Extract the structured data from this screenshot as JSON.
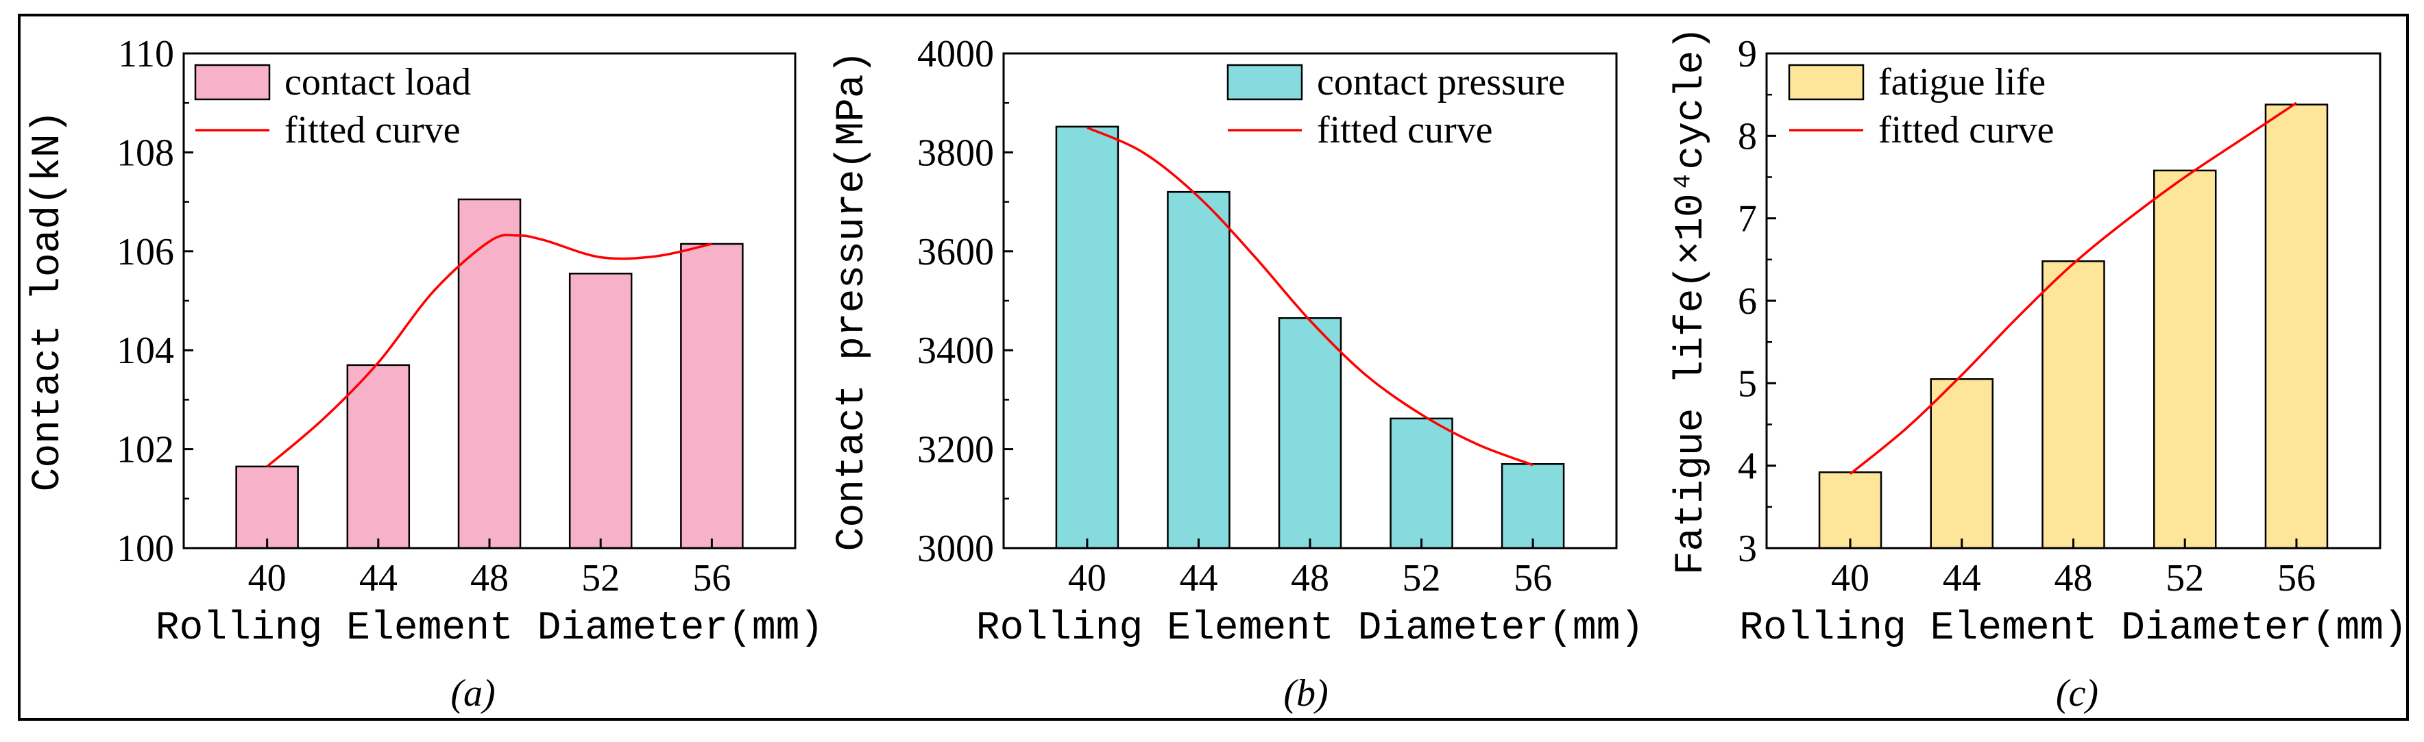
{
  "chart_data": [
    {
      "type": "bar",
      "caption": "(a)",
      "categories": [
        "40",
        "44",
        "48",
        "52",
        "56"
      ],
      "series": [
        {
          "name": "contact load",
          "kind": "bar",
          "values": [
            101.65,
            103.7,
            107.05,
            105.55,
            106.15
          ]
        },
        {
          "name": "fitted curve",
          "kind": "line",
          "x": [
            40,
            42,
            44,
            46,
            48,
            49,
            50,
            52,
            54,
            56
          ],
          "values": [
            101.65,
            102.6,
            103.75,
            105.2,
            106.2,
            106.32,
            106.22,
            105.88,
            105.9,
            106.15
          ]
        }
      ],
      "xlabel": "Rolling Element Diameter(mm)",
      "ylabel": "Contact load(kN)",
      "ylim": [
        100,
        110
      ],
      "yticks": [
        "100",
        "102",
        "104",
        "106",
        "108",
        "110"
      ],
      "legend_position": "top-left",
      "colors": {
        "bar": "#f7b2c9",
        "line": "#ff0000"
      }
    },
    {
      "type": "bar",
      "caption": "(b)",
      "categories": [
        "40",
        "44",
        "48",
        "52",
        "56"
      ],
      "series": [
        {
          "name": "contact pressure",
          "kind": "bar",
          "values": [
            3852,
            3720,
            3465,
            3262,
            3170
          ]
        },
        {
          "name": "fitted curve",
          "kind": "line",
          "x": [
            40,
            42,
            44,
            46,
            48,
            50,
            52,
            54,
            56
          ],
          "values": [
            3850,
            3800,
            3710,
            3590,
            3460,
            3350,
            3270,
            3210,
            3168
          ]
        }
      ],
      "xlabel": "Rolling Element Diameter(mm)",
      "ylabel": "Contact pressure(MPa)",
      "ylim": [
        3000,
        4000
      ],
      "yticks": [
        "3000",
        "3200",
        "3400",
        "3600",
        "3800",
        "4000"
      ],
      "legend_position": "top-right",
      "colors": {
        "bar": "#86dbdf",
        "line": "#ff0000"
      }
    },
    {
      "type": "bar",
      "caption": "(c)",
      "categories": [
        "40",
        "44",
        "48",
        "52",
        "56"
      ],
      "series": [
        {
          "name": "fatigue life",
          "kind": "bar",
          "values": [
            3.92,
            5.05,
            6.48,
            7.58,
            8.38
          ]
        },
        {
          "name": "fitted curve",
          "kind": "line",
          "x": [
            40,
            42,
            44,
            46,
            48,
            50,
            52,
            54,
            56
          ],
          "values": [
            3.9,
            4.45,
            5.1,
            5.8,
            6.45,
            7.0,
            7.5,
            7.95,
            8.4
          ]
        }
      ],
      "xlabel": "Rolling Element Diameter(mm)",
      "ylabel": "Fatigue life(×10⁴cycle)",
      "ylim": [
        3,
        9
      ],
      "yticks": [
        "3",
        "4",
        "5",
        "6",
        "7",
        "8",
        "9"
      ],
      "legend_position": "top-left",
      "colors": {
        "bar": "#fde59a",
        "line": "#ff0000"
      }
    }
  ]
}
